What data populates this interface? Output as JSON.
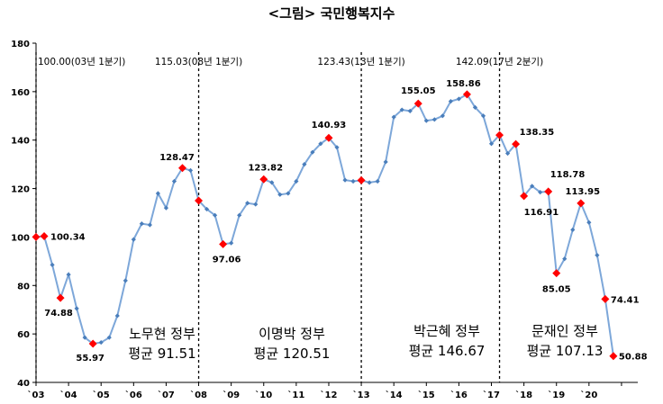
{
  "chart_data": {
    "type": "line",
    "title": "<그림>  국민행복지수",
    "xlabel": "",
    "ylabel": "",
    "ylim": [
      40,
      180
    ],
    "y_ticks": [
      40,
      60,
      80,
      100,
      120,
      140,
      160,
      180
    ],
    "x_ticks": [
      {
        "label": "`03",
        "index": 0
      },
      {
        "label": "`04",
        "index": 4
      },
      {
        "label": "`05",
        "index": 8
      },
      {
        "label": "`06",
        "index": 12
      },
      {
        "label": "`07",
        "index": 16
      },
      {
        "label": "`08",
        "index": 20
      },
      {
        "label": "`09",
        "index": 24
      },
      {
        "label": "`10",
        "index": 28
      },
      {
        "label": "`11",
        "index": 32
      },
      {
        "label": "`12",
        "index": 36
      },
      {
        "label": "`13",
        "index": 40
      },
      {
        "label": "`14",
        "index": 44
      },
      {
        "label": "`15",
        "index": 48
      },
      {
        "label": "`16",
        "index": 52
      },
      {
        "label": "`17",
        "index": 56
      },
      {
        "label": "`18",
        "index": 60
      },
      {
        "label": "`19",
        "index": 64
      },
      {
        "label": "`20",
        "index": 68
      }
    ],
    "x_count": 74,
    "grid": false,
    "legend": "none",
    "line_color": "#7da7d9",
    "marker_color": "#4a7ebb",
    "highlight_color": "#ff0000",
    "series": [
      {
        "values": [
          100.0,
          100.34,
          88.5,
          74.88,
          84.5,
          70.5,
          58.5,
          55.97,
          56.5,
          58.5,
          67.5,
          82.0,
          99.0,
          105.5,
          105.0,
          118.0,
          112.0,
          123.0,
          128.47,
          127.5,
          115.03,
          111.5,
          109.0,
          97.06,
          97.5,
          109.0,
          114.0,
          113.5,
          123.82,
          122.5,
          117.5,
          118.0,
          123.0,
          130.0,
          135.0,
          138.5,
          140.93,
          137.0,
          123.5,
          123.0,
          123.43,
          122.5,
          123.0,
          131.0,
          149.5,
          152.5,
          152.0,
          155.05,
          148.0,
          148.5,
          150.0,
          156.0,
          157.0,
          158.86,
          153.5,
          150.0,
          138.5,
          142.09,
          134.5,
          138.35,
          116.91,
          121.0,
          118.5,
          118.78,
          85.05,
          91.0,
          103.0,
          113.95,
          106.0,
          92.5,
          74.41,
          50.88
        ]
      }
    ],
    "highlights": [
      {
        "index": 0,
        "label": "",
        "value": 100.0
      },
      {
        "index": 1,
        "label": "100.34",
        "value": 100.34
      },
      {
        "index": 3,
        "label": "74.88",
        "value": 74.88
      },
      {
        "index": 7,
        "label": "55.97",
        "value": 55.97
      },
      {
        "index": 18,
        "label": "128.47",
        "value": 128.47
      },
      {
        "index": 20,
        "label": "",
        "value": 115.03
      },
      {
        "index": 23,
        "label": "97.06",
        "value": 97.06
      },
      {
        "index": 28,
        "label": "123.82",
        "value": 123.82
      },
      {
        "index": 36,
        "label": "140.93",
        "value": 140.93
      },
      {
        "index": 40,
        "label": "",
        "value": 123.43
      },
      {
        "index": 47,
        "label": "155.05",
        "value": 155.05
      },
      {
        "index": 53,
        "label": "158.86",
        "value": 158.86
      },
      {
        "index": 57,
        "label": "",
        "value": 142.09
      },
      {
        "index": 59,
        "label": "138.35",
        "value": 138.35
      },
      {
        "index": 60,
        "label": "116.91",
        "value": 116.91
      },
      {
        "index": 63,
        "label": "118.78",
        "value": 118.78
      },
      {
        "index": 64,
        "label": "85.05",
        "value": 85.05
      },
      {
        "index": 67,
        "label": "113.95",
        "value": 113.95
      },
      {
        "index": 70,
        "label": "74.41",
        "value": 74.41
      },
      {
        "index": 71,
        "label": "50.88",
        "value": 50.88
      }
    ],
    "period_markers": [
      {
        "index": 0,
        "label": "100.00(03년 1분기)"
      },
      {
        "index": 20,
        "label": "115.03(08년 1분기)"
      },
      {
        "index": 40,
        "label": "123.43(13년 1분기)"
      },
      {
        "index": 57,
        "label": "142.09(17년 2분기)"
      }
    ],
    "governments": [
      {
        "name": "노무현 정부",
        "avg": "평균 91.51"
      },
      {
        "name": "이명박 정부",
        "avg": "평균 120.51"
      },
      {
        "name": "박근혜 정부",
        "avg": "평균 146.67"
      },
      {
        "name": "문재인 정부",
        "avg": "평균 107.13"
      }
    ]
  }
}
